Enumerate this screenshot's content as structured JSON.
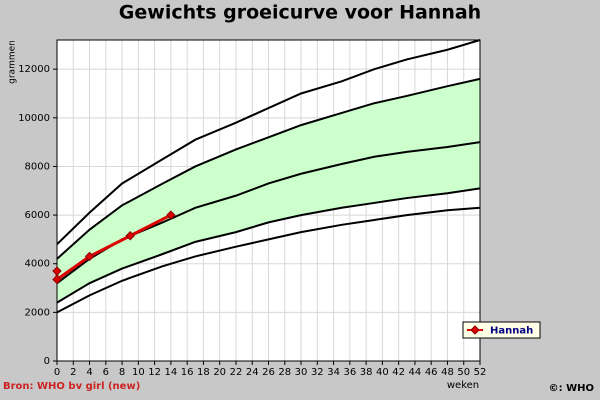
{
  "chart_data": {
    "type": "line",
    "title": "Gewichts groeicurve voor Hannah",
    "ylabel": "grammen",
    "xlabel": "weken",
    "source": "Bron: WHO bv girl (new)",
    "copyright": "©: WHO",
    "xlim": [
      0,
      52
    ],
    "ylim": [
      0,
      13200
    ],
    "xticks": [
      0,
      2,
      4,
      6,
      8,
      10,
      12,
      14,
      16,
      18,
      20,
      22,
      24,
      26,
      28,
      30,
      32,
      34,
      36,
      38,
      40,
      42,
      44,
      46,
      48,
      50,
      52
    ],
    "yticks": [
      0,
      2000,
      4000,
      6000,
      8000,
      10000,
      12000
    ],
    "grid": true,
    "fill_between": [
      1,
      3
    ],
    "fill_color": "#ccffcc",
    "legend": "lower right",
    "series": [
      {
        "color": "#000000",
        "x": [
          0,
          4,
          8,
          13,
          17,
          22,
          26,
          30,
          35,
          39,
          43,
          48,
          52
        ],
        "values": [
          2000,
          2700,
          3300,
          3900,
          4300,
          4700,
          5000,
          5300,
          5600,
          5800,
          6000,
          6200,
          6300
        ]
      },
      {
        "color": "#000000",
        "x": [
          0,
          4,
          8,
          13,
          17,
          22,
          26,
          30,
          35,
          39,
          43,
          48,
          52
        ],
        "values": [
          2400,
          3200,
          3800,
          4400,
          4900,
          5300,
          5700,
          6000,
          6300,
          6500,
          6700,
          6900,
          7100
        ]
      },
      {
        "color": "#000000",
        "x": [
          0,
          4,
          8,
          13,
          17,
          22,
          26,
          30,
          35,
          39,
          43,
          48,
          52
        ],
        "values": [
          3200,
          4200,
          5000,
          5700,
          6300,
          6800,
          7300,
          7700,
          8100,
          8400,
          8600,
          8800,
          9000
        ]
      },
      {
        "color": "#000000",
        "x": [
          0,
          4,
          8,
          13,
          17,
          22,
          26,
          30,
          35,
          39,
          43,
          48,
          52
        ],
        "values": [
          4200,
          5400,
          6400,
          7300,
          8000,
          8700,
          9200,
          9700,
          10200,
          10600,
          10900,
          11300,
          11600
        ]
      },
      {
        "color": "#000000",
        "x": [
          0,
          4,
          8,
          13,
          17,
          22,
          26,
          30,
          35,
          39,
          43,
          48,
          52
        ],
        "values": [
          4800,
          6100,
          7300,
          8300,
          9100,
          9800,
          10400,
          11000,
          11500,
          12000,
          12400,
          12800,
          13200
        ]
      },
      {
        "name": "Hannah",
        "color": "#dd0000",
        "markers": true,
        "x": [
          0,
          0,
          4,
          9,
          14
        ],
        "values": [
          3700,
          3350,
          4300,
          5150,
          6000
        ]
      }
    ]
  }
}
